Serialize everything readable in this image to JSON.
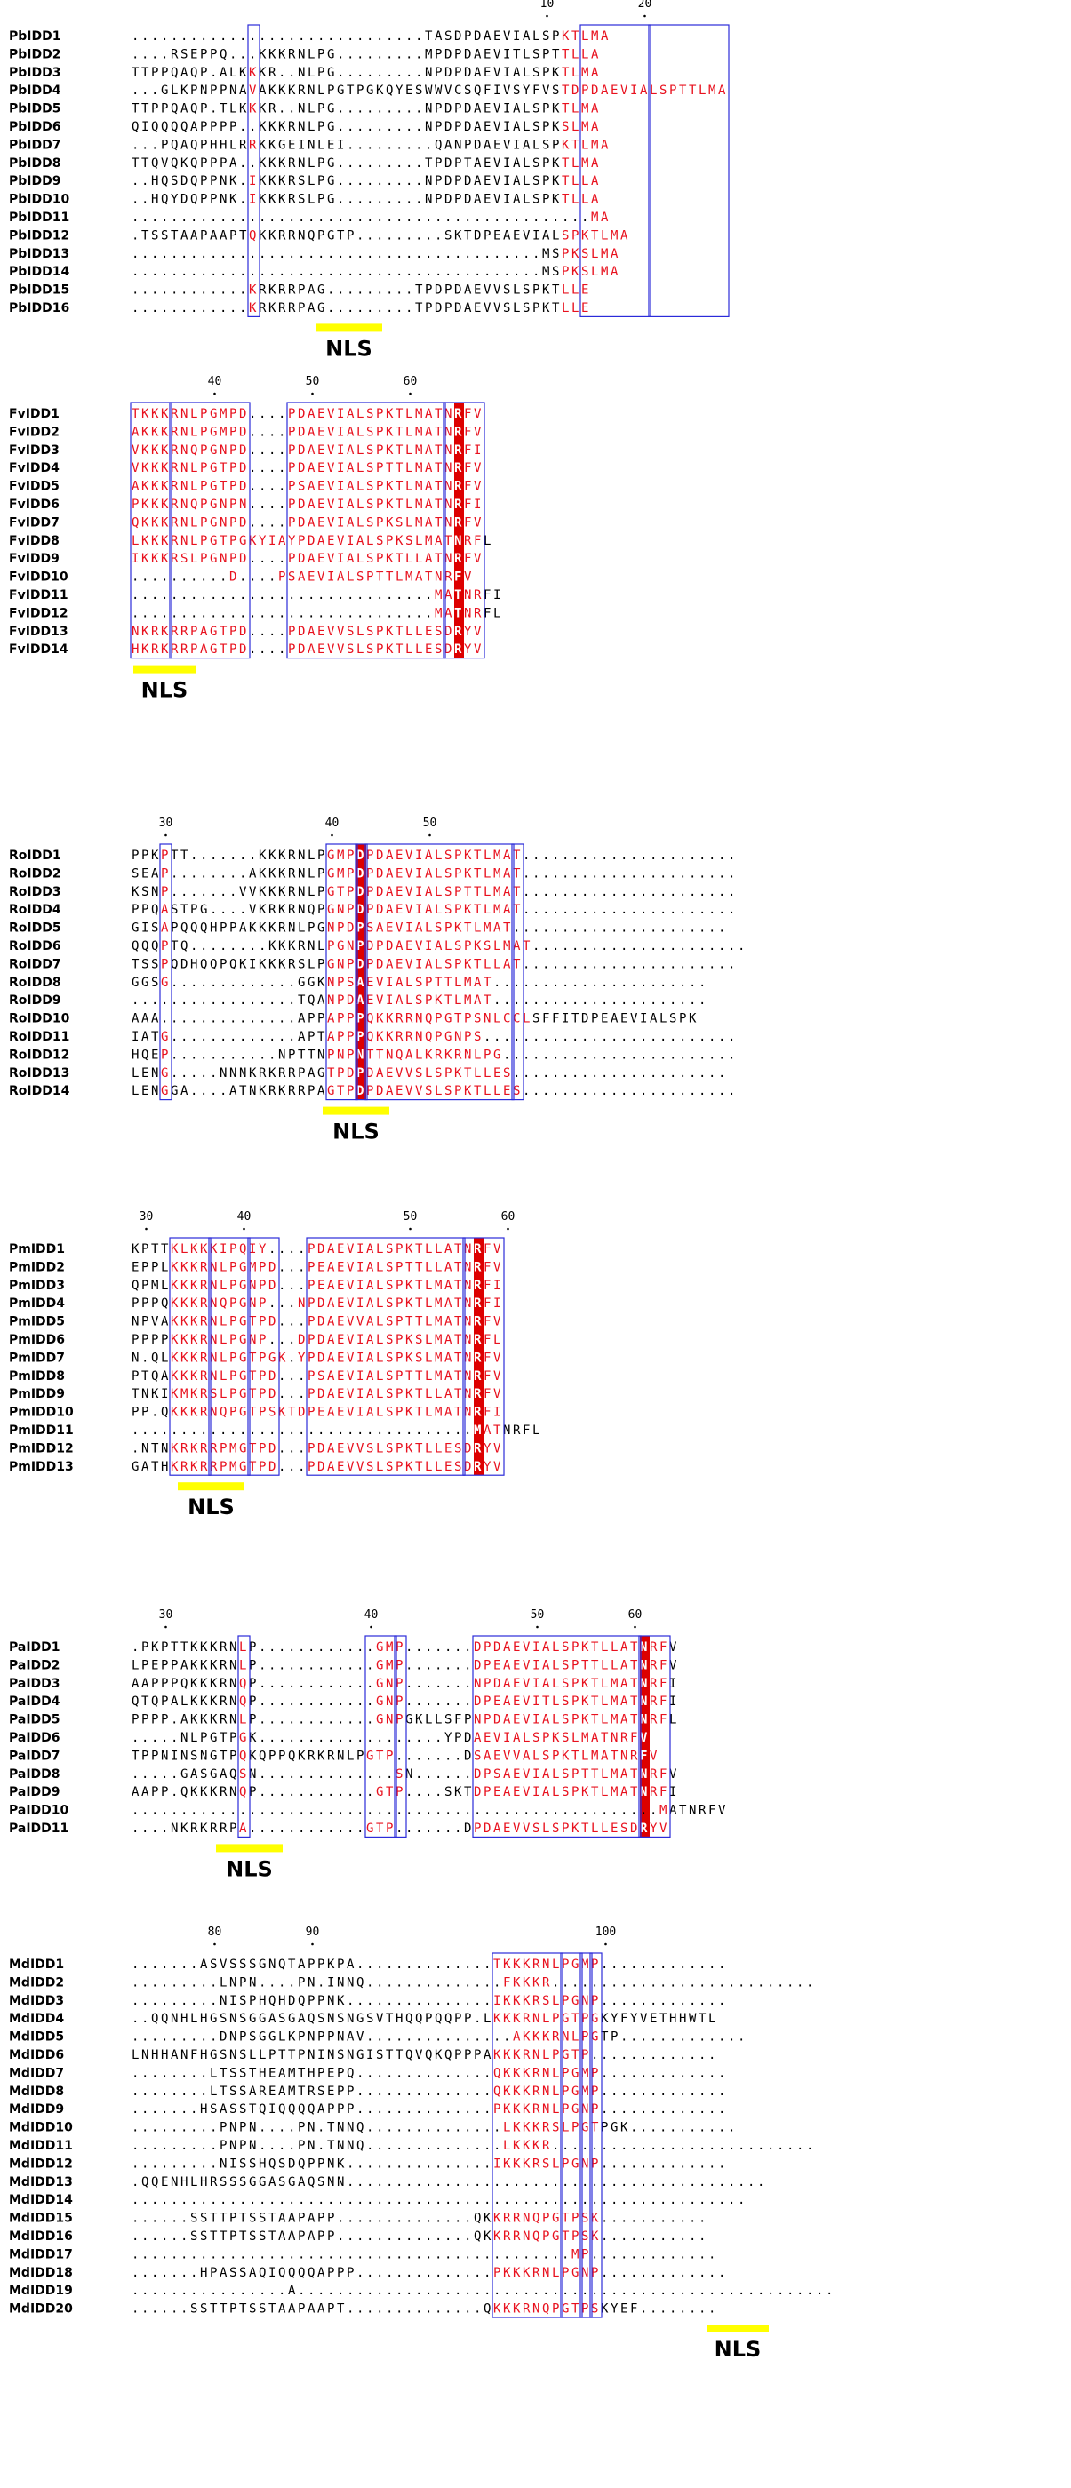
{
  "colors": {
    "identical_bg": "#dd0000",
    "identical_fg": "#ffffff",
    "similar_fg": "#e8111e",
    "box_stroke": "#2b2bd9",
    "nls_bar": "#ffff00",
    "text": "#000000"
  },
  "blocks": [
    {
      "id": "pb",
      "nls_label": "NLS",
      "ruler": [
        {
          "label": "10",
          "col": 42
        },
        {
          "label": "20",
          "col": 52
        }
      ],
      "rows": [
        {
          "name": "PbIDD1",
          "seq": "..............................TASDPDAEVIALSPKTLMA"
        },
        {
          "name": "PbIDD2",
          "seq": "....RSEPPQ...KKKRNLPG.........MPDPDAEVITLSPTTLLA"
        },
        {
          "name": "PbIDD3",
          "seq": "TTPPQAQP.ALKKKR..NLPG.........NPDPDAEVIALSPKTLMA"
        },
        {
          "name": "PbIDD4",
          "seq": "...GLKPNPPNAVAKKKRNLPGTPGKQYESWWVCSQFIVSYFVSTDPDAEVIALSPTTLMA"
        },
        {
          "name": "PbIDD5",
          "seq": "TTPPQAQP.TLKKKR..NLPG.........NPDPDAEVIALSPKTLMA"
        },
        {
          "name": "PbIDD6",
          "seq": "QIQQQQAPPPP..KKKRNLPG.........NPDPDAEVIALSPKSLMA"
        },
        {
          "name": "PbIDD7",
          "seq": "...PQAQPHHLRRKKGEINLEI.........QANPDAEVIALSPKTLMA"
        },
        {
          "name": "PbIDD8",
          "seq": "TTQVQKQPPPA..KKKRNLPG.........TPDPTAEVIALSPKTLMA"
        },
        {
          "name": "PbIDD9",
          "seq": "..HQSDQPPNK.IKKKRSLPG.........NPDPDAEVIALSPKTLLA"
        },
        {
          "name": "PbIDD10",
          "seq": "..HQYDQPPNK.IKKKRSLPG.........NPDPDAEVIALSPKTLLA"
        },
        {
          "name": "PbIDD11",
          "seq": "...............................................MA"
        },
        {
          "name": "PbIDD12",
          "seq": ".TSSTAAPAAPTQKKRRNQPGTP.........SKTDPEAEVIALSPKTLMA"
        },
        {
          "name": "PbIDD13",
          "seq": "..........................................MSPKSLMA"
        },
        {
          "name": "PbIDD14",
          "seq": "..........................................MSPKSLMA"
        },
        {
          "name": "PbIDD15",
          "seq": "............KRKRRPAG.........TPDPDAEVVSLSPKTLLE"
        },
        {
          "name": "PbIDD16",
          "seq": "............KRKRRPAG.........TPDPDAEVVSLSPKTLLE"
        }
      ]
    },
    {
      "id": "fv",
      "nls_label": "NLS",
      "ruler": [
        {
          "label": "40",
          "col": 8
        },
        {
          "label": "50",
          "col": 18
        },
        {
          "label": "60",
          "col": 28
        }
      ],
      "rows": [
        {
          "name": "FvIDD1",
          "seq": "TKKKRNLPGMPD....PDAEVIALSPKTLMATNRFV"
        },
        {
          "name": "FvIDD2",
          "seq": "AKKKRNLPGMPD....PDAEVIALSPKTLMATNRFV"
        },
        {
          "name": "FvIDD3",
          "seq": "VKKKRNQPGNPD....PDAEVIALSPKTLMATNRFI"
        },
        {
          "name": "FvIDD4",
          "seq": "VKKKRNLPGTPD....PDAEVIALSPTTLMATNRFV"
        },
        {
          "name": "FvIDD5",
          "seq": "AKKKRNLPGTPD....PSAEVIALSPKTLMATNRFV"
        },
        {
          "name": "FvIDD6",
          "seq": "PKKKRNQPGNPN....PDAEVIALSPKTLMATNRFI"
        },
        {
          "name": "FvIDD7",
          "seq": "QKKKRNLPGNPD....PDAEVIALSPKSLMATNRFV"
        },
        {
          "name": "FvIDD8",
          "seq": "LKKKRNLPGTPGKYIAYPDAEVIALSPKSLMATNRFL"
        },
        {
          "name": "FvIDD9",
          "seq": "IKKKRSLPGNPD....PDAEVIALSPKTLLATNRFV"
        },
        {
          "name": "FvIDD10",
          "seq": "..........D....PSAEVIALSPTTLMATNRFV"
        },
        {
          "name": "FvIDD11",
          "seq": "...............................MATNRFI"
        },
        {
          "name": "FvIDD12",
          "seq": "...............................MATNRFL"
        },
        {
          "name": "FvIDD13",
          "seq": "NKRKRRPAGTPD....PDAEVVSLSPKTLLESDRYV"
        },
        {
          "name": "FvIDD14",
          "seq": "HKRKRRPAGTPD....PDAEVVSLSPKTLLESDRYV"
        }
      ]
    },
    {
      "id": "ro",
      "nls_label": "NLS",
      "ruler": [
        {
          "label": "30",
          "col": 3
        },
        {
          "label": "40",
          "col": 20
        },
        {
          "label": "50",
          "col": 30
        }
      ],
      "rows": [
        {
          "name": "RoIDD1",
          "seq": "PPKPTT.......KKKRNLPGMPDPDAEVIALSPKTLMAT......................"
        },
        {
          "name": "RoIDD2",
          "seq": "SEAP........AKKKRNLPGMPDPDAEVIALSPKTLMAT......................"
        },
        {
          "name": "RoIDD3",
          "seq": "KSNP.......VVKKKRNLPGTPDPDAEVIALSPTTLMAT......................"
        },
        {
          "name": "RoIDD4",
          "seq": "PPQASTPG....VKRKRNQPGNPDPDAEVIALSPKTLMAT......................"
        },
        {
          "name": "RoIDD5",
          "seq": "GISAPQQQHPPAKKKRNLPGNPDPSAEVIALSPKTLMAT......................"
        },
        {
          "name": "RoIDD6",
          "seq": "QQQPTQ........KKKRNLPGNPDPDAEVIALSPKSLMAT......................"
        },
        {
          "name": "RoIDD7",
          "seq": "TSSPQDHQQPQKIKKKRSLPGNPDPDAEVIALSPKTLLAT......................"
        },
        {
          "name": "RoIDD8",
          "seq": "GGSG.............GGKNPSAEVIALSPTTLMAT......................"
        },
        {
          "name": "RoIDD9",
          "seq": ".................TQANPDAEVIALSPKTLMAT......................"
        },
        {
          "name": "RoIDD10",
          "seq": "AAA..............APPAPPPQKKRRNQPGTPSNLCCLSFFITDPEAEVIALSPK"
        },
        {
          "name": "RoIDD11",
          "seq": "IATG.............APTAPPPQKKRRNQPGNPS.........................."
        },
        {
          "name": "RoIDD12",
          "seq": "HQEP...........NPTTNPNPNTTNQALKRKRNLPG........................"
        },
        {
          "name": "RoIDD13",
          "seq": "LENG.....NNNKRKRRPAGTPDPDAEVVSLSPKTLLES......................"
        },
        {
          "name": "RoIDD14",
          "seq": "LENGGA....ATNKRKRRPAGTPDPDAEVVSLSPKTLLES......................"
        }
      ]
    },
    {
      "id": "pm",
      "nls_label": "NLS",
      "ruler": [
        {
          "label": "30",
          "col": 1
        },
        {
          "label": "40",
          "col": 11
        },
        {
          "label": "50",
          "col": 28
        },
        {
          "label": "60",
          "col": 38
        }
      ],
      "rows": [
        {
          "name": "PmIDD1",
          "seq": "KPTTKLKKKIPQIY....PDAEVIALSPKTLLATNRFV"
        },
        {
          "name": "PmIDD2",
          "seq": "EPPLKKKRNLPGMPD...PEAEVIALSPTTLLATNRFV"
        },
        {
          "name": "PmIDD3",
          "seq": "QPMLKKKRNLPGNPD...PEAEVIALSPKTLMATNRFI"
        },
        {
          "name": "PmIDD4",
          "seq": "PPPQKKKRNQPGNP...NPDAEVIALSPKTLMATNRFI"
        },
        {
          "name": "PmIDD5",
          "seq": "NPVAKKKRNLPGTPD...PDAEVVALSPTTLMATNRFV"
        },
        {
          "name": "PmIDD6",
          "seq": "PPPPKKKRNLPGNP...DPDAEVIALSPKSLMATNRFL"
        },
        {
          "name": "PmIDD7",
          "seq": "N.QLKKKRNLPGTPGK.YPDAEVIALSPKSLMATNRFV"
        },
        {
          "name": "PmIDD8",
          "seq": "PTQAKKKRNLPGTPD...PSAEVIALSPTTLMATNRFV"
        },
        {
          "name": "PmIDD9",
          "seq": "TNKIKMKRSLPGTPD...PDAEVIALSPKTLLATNRFV"
        },
        {
          "name": "PmIDD10",
          "seq": "PP.QKKKRNQPGTPSKTDPEAEVIALSPKTLMATNRFI"
        },
        {
          "name": "PmIDD11",
          "seq": "...................................MATNRFL"
        },
        {
          "name": "PmIDD12",
          "seq": ".NTNKRKRRPMGTPD...PDAEVVSLSPKTLLESDRYV"
        },
        {
          "name": "PmIDD13",
          "seq": "GATHKRKRRPMGTPD...PDAEVVSLSPKTLLESDRYV"
        }
      ]
    },
    {
      "id": "pa",
      "nls_label": "NLS",
      "ruler": [
        {
          "label": "30",
          "col": 3
        },
        {
          "label": "40",
          "col": 24
        },
        {
          "label": "50",
          "col": 41
        },
        {
          "label": "60",
          "col": 51
        }
      ],
      "rows": [
        {
          "name": "PaIDD1",
          "seq": ".PKPTTKKKRNLP............GMP.......DPDAEVIALSPKTLLATNRFV"
        },
        {
          "name": "PaIDD2",
          "seq": "LPEPPAKKKRNLP............GMP.......DPEAEVIALSPTTLLATNRFV"
        },
        {
          "name": "PaIDD3",
          "seq": "AAPPPQKKKRNQP............GNP.......NPDAEVIALSPKTLMATNRFI"
        },
        {
          "name": "PaIDD4",
          "seq": "QTQPALKKKRNQP............GNP.......DPEAEVITLSPKTLMATNRFI"
        },
        {
          "name": "PaIDD5",
          "seq": "PPPP.AKKKRNLP............GNPGKLLSFPNPDAEVIALSPKTLMATNRFL"
        },
        {
          "name": "PaIDD6",
          "seq": ".....NLPGTPGK...................YPDAEVIALSPKSLMATNRFV"
        },
        {
          "name": "PaIDD7",
          "seq": "TPPNINSNGTPQKQPPQKRKRNLPGTP.......DSAEVVALSPKTLMATNRFV"
        },
        {
          "name": "PaIDD8",
          "seq": ".....GASGAQSN..............SN......DPSAEVIALSPTTLMATNRFV"
        },
        {
          "name": "PaIDD9",
          "seq": "AAPP.QKKKRNQP............GTP....SKTDPEAEVIALSPKTLMATNRFI"
        },
        {
          "name": "PaIDD10",
          "seq": "......................................................MATNRFV"
        },
        {
          "name": "PaIDD11",
          "seq": "....NKRKRRPA............GTP.......DPDAEVVSLSPKTLLESDRYV"
        }
      ]
    },
    {
      "id": "md",
      "nls_label": "NLS",
      "ruler": [
        {
          "label": "80",
          "col": 8
        },
        {
          "label": "90",
          "col": 18
        },
        {
          "label": "100",
          "col": 48
        }
      ],
      "rows": [
        {
          "name": "MdIDD1",
          "seq": ".......ASVSSSGNQTAPPKPA..............TKKKRNLPGMP............."
        },
        {
          "name": "MdIDD2",
          "seq": ".........LNPN....PN.INNQ..............FKKKR..........................."
        },
        {
          "name": "MdIDD3",
          "seq": ".........NISPHQHDQPPNK...............IKKKRSLPGNP............."
        },
        {
          "name": "MdIDD4",
          "seq": "..QQNHLHGSNSGGASGAQSNSNGSVTHQQPQQPP.LKKKRNLPGTPGKYFYVETHHWTL"
        },
        {
          "name": "MdIDD5",
          "seq": ".........DNPSGGLKPNPPNAV...............AKKKRNLPGTP............."
        },
        {
          "name": "MdIDD6",
          "seq": "LNHHANFHGSNSLLPTTPNINSNGISTTQVQKQPPPAKKKRNLPGTP............."
        },
        {
          "name": "MdIDD7",
          "seq": "........LTSSTHEAMTHPEPQ..............QKKKRNLPGMP............."
        },
        {
          "name": "MdIDD8",
          "seq": "........LTSSAREAMTRSEPP..............QKKKRNLPGMP............."
        },
        {
          "name": "MdIDD9",
          "seq": ".......HSASSTQIQQQQAPPP..............PKKKRNLPGNP............."
        },
        {
          "name": "MdIDD10",
          "seq": ".........PNPN....PN.TNNQ..............LKKKRSLPGTPGK..........."
        },
        {
          "name": "MdIDD11",
          "seq": ".........PNPN....PN.TNNQ..............LKKKR..........................."
        },
        {
          "name": "MdIDD12",
          "seq": ".........NISSHQSDQPPNK...............IKKKRSLPGNP............."
        },
        {
          "name": "MdIDD13",
          "seq": ".QQENHLHRSSSGGASGAQSNN..........................................."
        },
        {
          "name": "MdIDD14",
          "seq": "..............................................................."
        },
        {
          "name": "MdIDD15",
          "seq": "......SSTTPTSSTAAPAPP..............QKKRRNQPGTPSK..........."
        },
        {
          "name": "MdIDD16",
          "seq": "......SSTTPTSSTAAPAPP..............QKKRRNQPGTPSK..........."
        },
        {
          "name": "MdIDD17",
          "seq": ".............................................MP............."
        },
        {
          "name": "MdIDD18",
          "seq": ".......HPASSAQIQQQQAPPP..............PKKKRNLPGNP............."
        },
        {
          "name": "MdIDD19",
          "seq": "................A......................................................."
        },
        {
          "name": "MdIDD20",
          "seq": "......SSTTPTSSTAAPAAPT..............QKKKRNQPGTPSKYEF........"
        }
      ]
    }
  ]
}
